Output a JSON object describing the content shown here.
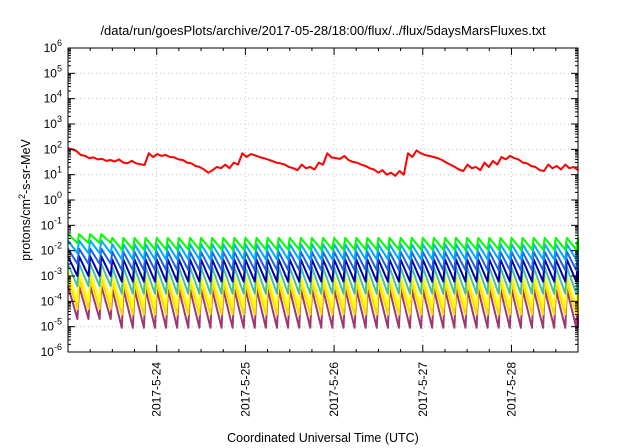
{
  "chart_data": {
    "type": "line",
    "title": "/data/run/goesPlots/archive/2017-05-28/18:00/flux/../flux/5daysMarsFluxes.txt",
    "xlabel": "Coordinated Universal Time (UTC)",
    "ylabel": {
      "prefix": "protons/cm",
      "sup": "2",
      "suffix": "-s-sr-MeV"
    },
    "y_scale": "log",
    "ylim": [
      1e-06,
      1000000.0
    ],
    "y_ticks": [
      {
        "base": "10",
        "exp": "6"
      },
      {
        "base": "10",
        "exp": "5"
      },
      {
        "base": "10",
        "exp": "4"
      },
      {
        "base": "10",
        "exp": "3"
      },
      {
        "base": "10",
        "exp": "2"
      },
      {
        "base": "10",
        "exp": "1"
      },
      {
        "base": "10",
        "exp": "0"
      },
      {
        "base": "10",
        "exp": "-1"
      },
      {
        "base": "10",
        "exp": "-2"
      },
      {
        "base": "10",
        "exp": "-3"
      },
      {
        "base": "10",
        "exp": "-4"
      },
      {
        "base": "10",
        "exp": "-5"
      },
      {
        "base": "10",
        "exp": "-6"
      }
    ],
    "xlim": [
      "2017-05-23T00:00",
      "2017-05-28T18:00"
    ],
    "x_ticks": [
      "2017-5-24",
      "2017-5-25",
      "2017-5-26",
      "2017-5-27",
      "2017-5-28"
    ],
    "x_tick_dates": [
      "2017-05-24",
      "2017-05-25",
      "2017-05-26",
      "2017-05-27",
      "2017-05-28"
    ],
    "grid": true,
    "legend": "none",
    "series": [
      {
        "color": "#ff0000",
        "period_hours": 3,
        "values": [
          110,
          100,
          85,
          60,
          55,
          45,
          48,
          40,
          42,
          35,
          38,
          33,
          40,
          30,
          28,
          35,
          28,
          26,
          24,
          70,
          50,
          65,
          55,
          60,
          50,
          48,
          40,
          38,
          30,
          28,
          22,
          20,
          16,
          12,
          15,
          20,
          18,
          25,
          18,
          30,
          25,
          70,
          50,
          65,
          58,
          50,
          45,
          40,
          35,
          30,
          28,
          25,
          20,
          18,
          15,
          25,
          18,
          20,
          16,
          30,
          25,
          70,
          48,
          45,
          42,
          55,
          38,
          32,
          30,
          25,
          22,
          18,
          16,
          12,
          15,
          10,
          12,
          9,
          14,
          10,
          70,
          50,
          90,
          70,
          60,
          55,
          50,
          45,
          38,
          30,
          25,
          20,
          16,
          14,
          25,
          18,
          20,
          15,
          30,
          20,
          35,
          25,
          50,
          40,
          55,
          45,
          40,
          30,
          28,
          22,
          20,
          15,
          14,
          25,
          18,
          22,
          16,
          25,
          18,
          20,
          15
        ]
      },
      {
        "color": "#00ff00",
        "period_hours": 3,
        "peak": 0.032,
        "trough": 0.011,
        "peak_early": 0.045,
        "trough_early": 0.02
      },
      {
        "color": "#00aaff",
        "period_hours": 3,
        "peak": 0.018,
        "trough": 0.0045,
        "peak_early": 0.025,
        "trough_early": 0.008
      },
      {
        "color": "#2060e0",
        "period_hours": 3,
        "peak": 0.009,
        "trough": 0.0017,
        "peak_early": 0.012,
        "trough_early": 0.003
      },
      {
        "color": "#0000b0",
        "period_hours": 3,
        "peak": 0.0045,
        "trough": 0.0006,
        "peak_early": 0.006,
        "trough_early": 0.001
      },
      {
        "color": "#40c0a0",
        "period_hours": 3,
        "peak": 0.0022,
        "trough": 0.0002,
        "peak_early": 0.003,
        "trough_early": 0.0004
      },
      {
        "color": "#ffff00",
        "period_hours": 3,
        "peak": 0.001,
        "trough": 6e-05,
        "peak_early": 0.0015,
        "trough_early": 0.0001
      },
      {
        "color": "#ffd800",
        "period_hours": 3,
        "peak": 0.0006,
        "trough": 3e-05,
        "peak_early": 0.0008,
        "trough_early": 5e-05
      },
      {
        "color": "#a03870",
        "period_hours": 3,
        "peak": 0.0003,
        "trough": 9e-06,
        "peak_early": 0.0004,
        "trough_early": 2e-05
      }
    ]
  }
}
